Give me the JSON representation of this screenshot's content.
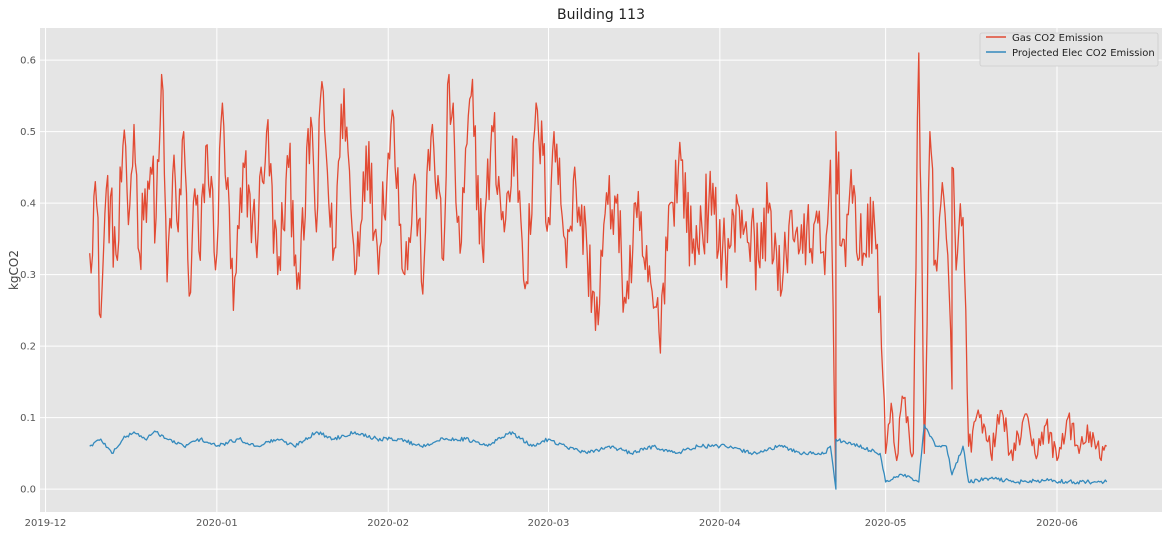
{
  "chart_data": {
    "type": "line",
    "title": "Building 113",
    "xlabel": "",
    "ylabel": "kgCO2",
    "xlim": [
      "2019-11-30",
      "2020-06-20"
    ],
    "ylim": [
      -0.032,
      0.645
    ],
    "x_ticks": [
      "2019-12",
      "2020-01",
      "2020-02",
      "2020-03",
      "2020-04",
      "2020-05",
      "2020-06"
    ],
    "y_ticks": [
      0.0,
      0.1,
      0.2,
      0.3,
      0.4,
      0.5,
      0.6
    ],
    "y_tick_labels": [
      "0.0",
      "0.1",
      "0.2",
      "0.3",
      "0.4",
      "0.5",
      "0.6"
    ],
    "grid": true,
    "legend_position": "top-right",
    "background_color": "#e5e5e5",
    "grid_color": "#ffffff",
    "series": [
      {
        "name": "Gas CO2 Emission",
        "color": "#e24a33",
        "points": [
          [
            "2019-12-09",
            0.33
          ],
          [
            "2019-12-10",
            0.43
          ],
          [
            "2019-12-11",
            0.24
          ],
          [
            "2019-12-12",
            0.42
          ],
          [
            "2019-12-14",
            0.32
          ],
          [
            "2019-12-15",
            0.48
          ],
          [
            "2019-12-16",
            0.37
          ],
          [
            "2019-12-17",
            0.51
          ],
          [
            "2019-12-18",
            0.33
          ],
          [
            "2019-12-19",
            0.42
          ],
          [
            "2019-12-20",
            0.45
          ],
          [
            "2019-12-21",
            0.38
          ],
          [
            "2019-12-22",
            0.58
          ],
          [
            "2019-12-23",
            0.29
          ],
          [
            "2019-12-24",
            0.44
          ],
          [
            "2019-12-25",
            0.36
          ],
          [
            "2019-12-26",
            0.5
          ],
          [
            "2019-12-27",
            0.27
          ],
          [
            "2019-12-28",
            0.42
          ],
          [
            "2019-12-29",
            0.32
          ],
          [
            "2019-12-30",
            0.48
          ],
          [
            "2020-01-01",
            0.33
          ],
          [
            "2020-01-02",
            0.54
          ],
          [
            "2020-01-04",
            0.25
          ],
          [
            "2020-01-06",
            0.45
          ],
          [
            "2020-01-08",
            0.35
          ],
          [
            "2020-01-10",
            0.5
          ],
          [
            "2020-01-12",
            0.3
          ],
          [
            "2020-01-14",
            0.45
          ],
          [
            "2020-01-16",
            0.28
          ],
          [
            "2020-01-18",
            0.52
          ],
          [
            "2020-01-19",
            0.36
          ],
          [
            "2020-01-20",
            0.57
          ],
          [
            "2020-01-22",
            0.32
          ],
          [
            "2020-01-24",
            0.56
          ],
          [
            "2020-01-26",
            0.3
          ],
          [
            "2020-01-28",
            0.48
          ],
          [
            "2020-01-30",
            0.34
          ],
          [
            "2020-02-02",
            0.52
          ],
          [
            "2020-02-04",
            0.3
          ],
          [
            "2020-02-06",
            0.43
          ],
          [
            "2020-02-07",
            0.29
          ],
          [
            "2020-02-09",
            0.51
          ],
          [
            "2020-02-11",
            0.32
          ],
          [
            "2020-02-12",
            0.58
          ],
          [
            "2020-02-14",
            0.33
          ],
          [
            "2020-02-16",
            0.55
          ],
          [
            "2020-02-18",
            0.34
          ],
          [
            "2020-02-20",
            0.5
          ],
          [
            "2020-02-22",
            0.36
          ],
          [
            "2020-02-24",
            0.49
          ],
          [
            "2020-02-26",
            0.29
          ],
          [
            "2020-02-28",
            0.53
          ],
          [
            "2020-03-01",
            0.38
          ],
          [
            "2020-03-02",
            0.5
          ],
          [
            "2020-03-04",
            0.35
          ],
          [
            "2020-03-06",
            0.42
          ],
          [
            "2020-03-08",
            0.33
          ],
          [
            "2020-03-10",
            0.23
          ],
          [
            "2020-03-11",
            0.37
          ],
          [
            "2020-03-13",
            0.41
          ],
          [
            "2020-03-15",
            0.26
          ],
          [
            "2020-03-17",
            0.38
          ],
          [
            "2020-03-19",
            0.29
          ],
          [
            "2020-03-21",
            0.22
          ],
          [
            "2020-03-23",
            0.4
          ],
          [
            "2020-03-25",
            0.46
          ],
          [
            "2020-03-27",
            0.33
          ],
          [
            "2020-03-30",
            0.4
          ],
          [
            "2020-04-02",
            0.33
          ],
          [
            "2020-04-05",
            0.39
          ],
          [
            "2020-04-08",
            0.32
          ],
          [
            "2020-04-10",
            0.4
          ],
          [
            "2020-04-12",
            0.27
          ],
          [
            "2020-04-14",
            0.39
          ],
          [
            "2020-04-16",
            0.33
          ],
          [
            "2020-04-18",
            0.37
          ],
          [
            "2020-04-20",
            0.3
          ],
          [
            "2020-04-21",
            0.46
          ],
          [
            "2020-04-22",
            0.01
          ],
          [
            "2020-04-22",
            0.5
          ],
          [
            "2020-04-23",
            0.34
          ],
          [
            "2020-04-25",
            0.4
          ],
          [
            "2020-04-27",
            0.33
          ],
          [
            "2020-04-29",
            0.37
          ],
          [
            "2020-04-30",
            0.27
          ],
          [
            "2020-05-01",
            0.05
          ],
          [
            "2020-05-02",
            0.12
          ],
          [
            "2020-05-03",
            0.04
          ],
          [
            "2020-05-04",
            0.13
          ],
          [
            "2020-05-06",
            0.05
          ],
          [
            "2020-05-07",
            0.61
          ],
          [
            "2020-05-08",
            0.05
          ],
          [
            "2020-05-09",
            0.5
          ],
          [
            "2020-05-10",
            0.32
          ],
          [
            "2020-05-11",
            0.4
          ],
          [
            "2020-05-12",
            0.35
          ],
          [
            "2020-05-13",
            0.14
          ],
          [
            "2020-05-13",
            0.45
          ],
          [
            "2020-05-14",
            0.33
          ],
          [
            "2020-05-15",
            0.38
          ],
          [
            "2020-05-16",
            0.06
          ],
          [
            "2020-05-18",
            0.1
          ],
          [
            "2020-05-20",
            0.05
          ],
          [
            "2020-05-22",
            0.11
          ],
          [
            "2020-05-24",
            0.04
          ],
          [
            "2020-05-26",
            0.1
          ],
          [
            "2020-05-28",
            0.05
          ],
          [
            "2020-05-30",
            0.09
          ],
          [
            "2020-06-01",
            0.04
          ],
          [
            "2020-06-03",
            0.1
          ],
          [
            "2020-06-05",
            0.05
          ],
          [
            "2020-06-07",
            0.08
          ],
          [
            "2020-06-09",
            0.04
          ],
          [
            "2020-06-10",
            0.06
          ]
        ]
      },
      {
        "name": "Projected Elec CO2 Emission",
        "color": "#348abd",
        "points": [
          [
            "2019-12-09",
            0.06
          ],
          [
            "2019-12-11",
            0.07
          ],
          [
            "2019-12-13",
            0.05
          ],
          [
            "2019-12-15",
            0.07
          ],
          [
            "2019-12-17",
            0.08
          ],
          [
            "2019-12-19",
            0.07
          ],
          [
            "2019-12-21",
            0.08
          ],
          [
            "2019-12-23",
            0.07
          ],
          [
            "2019-12-26",
            0.06
          ],
          [
            "2019-12-29",
            0.07
          ],
          [
            "2020-01-01",
            0.06
          ],
          [
            "2020-01-05",
            0.07
          ],
          [
            "2020-01-08",
            0.06
          ],
          [
            "2020-01-12",
            0.07
          ],
          [
            "2020-01-15",
            0.06
          ],
          [
            "2020-01-19",
            0.08
          ],
          [
            "2020-01-22",
            0.07
          ],
          [
            "2020-01-26",
            0.08
          ],
          [
            "2020-01-30",
            0.07
          ],
          [
            "2020-02-03",
            0.07
          ],
          [
            "2020-02-07",
            0.06
          ],
          [
            "2020-02-11",
            0.07
          ],
          [
            "2020-02-15",
            0.07
          ],
          [
            "2020-02-19",
            0.06
          ],
          [
            "2020-02-23",
            0.08
          ],
          [
            "2020-02-27",
            0.06
          ],
          [
            "2020-03-01",
            0.07
          ],
          [
            "2020-03-04",
            0.06
          ],
          [
            "2020-03-08",
            0.05
          ],
          [
            "2020-03-12",
            0.06
          ],
          [
            "2020-03-16",
            0.05
          ],
          [
            "2020-03-20",
            0.06
          ],
          [
            "2020-03-24",
            0.05
          ],
          [
            "2020-03-28",
            0.06
          ],
          [
            "2020-04-02",
            0.06
          ],
          [
            "2020-04-07",
            0.05
          ],
          [
            "2020-04-12",
            0.06
          ],
          [
            "2020-04-16",
            0.05
          ],
          [
            "2020-04-20",
            0.05
          ],
          [
            "2020-04-21",
            0.06
          ],
          [
            "2020-04-22",
            0.0
          ],
          [
            "2020-04-22",
            0.07
          ],
          [
            "2020-04-26",
            0.06
          ],
          [
            "2020-04-30",
            0.05
          ],
          [
            "2020-05-01",
            0.01
          ],
          [
            "2020-05-04",
            0.02
          ],
          [
            "2020-05-07",
            0.01
          ],
          [
            "2020-05-08",
            0.09
          ],
          [
            "2020-05-10",
            0.06
          ],
          [
            "2020-05-12",
            0.06
          ],
          [
            "2020-05-13",
            0.02
          ],
          [
            "2020-05-15",
            0.06
          ],
          [
            "2020-05-16",
            0.01
          ],
          [
            "2020-05-20",
            0.015
          ],
          [
            "2020-05-25",
            0.01
          ],
          [
            "2020-05-30",
            0.012
          ],
          [
            "2020-06-04",
            0.01
          ],
          [
            "2020-06-08",
            0.01
          ],
          [
            "2020-06-10",
            0.01
          ]
        ]
      }
    ]
  }
}
